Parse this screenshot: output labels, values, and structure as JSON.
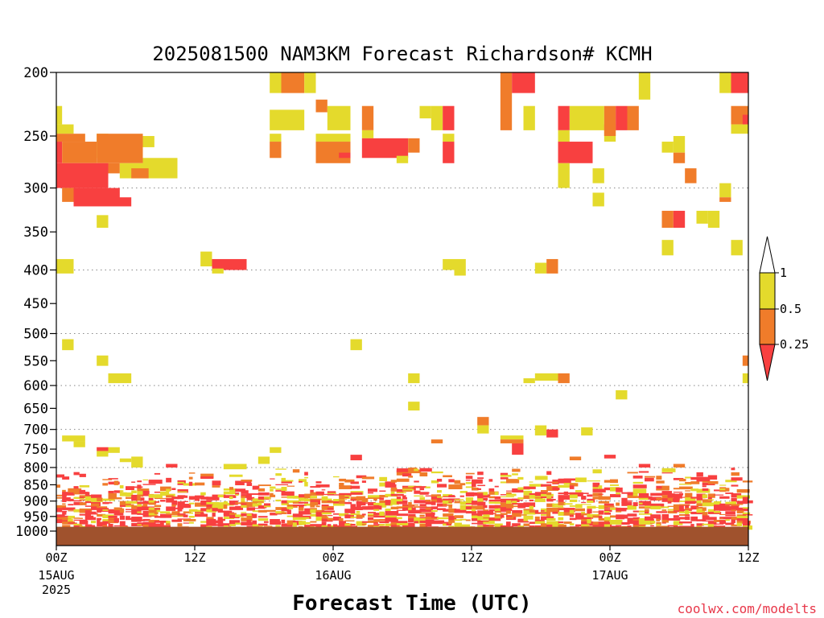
{
  "chart_data": {
    "type": "heatmap",
    "title": "2025081500 NAM3KM Forecast Richardson# KCMH",
    "xlabel": "Forecast Time (UTC)",
    "ylabel": "",
    "credit": "coolwx.com/modelts",
    "x_range_hours": [
      0,
      60
    ],
    "y_axis": {
      "scale": "log-pressure",
      "min": 200,
      "max": 1000,
      "inverted": true
    },
    "y_ticks": [
      200,
      250,
      300,
      350,
      400,
      450,
      500,
      550,
      600,
      650,
      700,
      750,
      800,
      850,
      900,
      950,
      1000
    ],
    "grid_levels": [
      300,
      400,
      500,
      600,
      700,
      800,
      900,
      1000
    ],
    "x_ticks": [
      {
        "hour": 0,
        "label": "00Z",
        "sub1": "15AUG",
        "sub2": "2025"
      },
      {
        "hour": 12,
        "label": "12Z",
        "sub1": "",
        "sub2": ""
      },
      {
        "hour": 24,
        "label": "00Z",
        "sub1": "16AUG",
        "sub2": ""
      },
      {
        "hour": 36,
        "label": "12Z",
        "sub1": "",
        "sub2": ""
      },
      {
        "hour": 48,
        "label": "00Z",
        "sub1": "17AUG",
        "sub2": ""
      },
      {
        "hour": 60,
        "label": "12Z",
        "sub1": "",
        "sub2": ""
      }
    ],
    "categories": [
      {
        "key": "lt025",
        "label": "< 0.25",
        "color": "#f84040"
      },
      {
        "key": "025_05",
        "label": "0.25 - 0.5",
        "color": "#f07c2a"
      },
      {
        "key": "05_1",
        "label": "0.5 - 1",
        "color": "#e4da2c"
      }
    ],
    "legend": {
      "placement": "right",
      "labels": [
        "1",
        "0.5",
        "0.25"
      ]
    },
    "ground_color": "#a0522d",
    "cells": [
      [
        "05_1",
        0.0,
        0.5,
        225,
        240
      ],
      [
        "05_1",
        0.0,
        1.5,
        240,
        248
      ],
      [
        "025_05",
        0.0,
        2.5,
        248,
        255
      ],
      [
        "lt025",
        0.0,
        0.5,
        255,
        275
      ],
      [
        "025_05",
        0.5,
        3.5,
        255,
        275
      ],
      [
        "05_1",
        3.5,
        4.5,
        248,
        270
      ],
      [
        "025_05",
        3.5,
        7.5,
        248,
        275
      ],
      [
        "05_1",
        7.5,
        8.5,
        250,
        260
      ],
      [
        "lt025",
        0.0,
        4.5,
        275,
        300
      ],
      [
        "025_05",
        4.5,
        5.5,
        275,
        285
      ],
      [
        "05_1",
        5.5,
        7.5,
        275,
        290
      ],
      [
        "05_1",
        7.5,
        10.5,
        270,
        290
      ],
      [
        "025_05",
        6.5,
        8.0,
        280,
        290
      ],
      [
        "lt025",
        1.5,
        5.5,
        300,
        315
      ],
      [
        "025_05",
        0.5,
        1.5,
        300,
        315
      ],
      [
        "lt025",
        1.5,
        6.5,
        310,
        320
      ],
      [
        "05_1",
        3.5,
        4.5,
        330,
        345
      ],
      [
        "05_1",
        0.0,
        1.5,
        385,
        405
      ],
      [
        "05_1",
        12.5,
        13.5,
        375,
        395
      ],
      [
        "lt025",
        13.5,
        16.5,
        385,
        400
      ],
      [
        "05_1",
        13.5,
        14.5,
        398,
        405
      ],
      [
        "05_1",
        18.5,
        19.5,
        200,
        215
      ],
      [
        "025_05",
        19.5,
        21.5,
        200,
        215
      ],
      [
        "05_1",
        21.5,
        22.5,
        200,
        215
      ],
      [
        "05_1",
        18.5,
        21.5,
        228,
        245
      ],
      [
        "025_05",
        22.5,
        23.5,
        220,
        230
      ],
      [
        "05_1",
        23.5,
        25.5,
        225,
        245
      ],
      [
        "05_1",
        18.5,
        19.5,
        248,
        255
      ],
      [
        "025_05",
        18.5,
        19.5,
        255,
        270
      ],
      [
        "05_1",
        22.5,
        25.5,
        248,
        255
      ],
      [
        "025_05",
        22.5,
        25.5,
        255,
        275
      ],
      [
        "lt025",
        24.5,
        25.5,
        265,
        270
      ],
      [
        "025_05",
        26.5,
        27.5,
        225,
        245
      ],
      [
        "05_1",
        26.5,
        27.5,
        245,
        252
      ],
      [
        "lt025",
        26.5,
        30.5,
        252,
        270
      ],
      [
        "05_1",
        29.5,
        30.5,
        268,
        275
      ],
      [
        "025_05",
        30.5,
        31.5,
        252,
        265
      ],
      [
        "05_1",
        31.5,
        32.5,
        225,
        235
      ],
      [
        "05_1",
        32.5,
        33.5,
        225,
        245
      ],
      [
        "lt025",
        33.5,
        34.5,
        225,
        245
      ],
      [
        "05_1",
        33.5,
        34.5,
        248,
        255
      ],
      [
        "lt025",
        33.5,
        34.5,
        255,
        275
      ],
      [
        "05_1",
        33.5,
        35.5,
        385,
        400
      ],
      [
        "05_1",
        34.5,
        35.5,
        400,
        408
      ],
      [
        "025_05",
        38.5,
        39.5,
        200,
        230
      ],
      [
        "lt025",
        39.5,
        41.5,
        200,
        215
      ],
      [
        "025_05",
        38.5,
        39.5,
        230,
        245
      ],
      [
        "05_1",
        40.5,
        41.5,
        225,
        245
      ],
      [
        "05_1",
        41.5,
        42.5,
        390,
        405
      ],
      [
        "025_05",
        42.5,
        43.5,
        385,
        405
      ],
      [
        "lt025",
        43.5,
        44.5,
        225,
        245
      ],
      [
        "05_1",
        43.5,
        44.5,
        245,
        255
      ],
      [
        "lt025",
        43.5,
        46.5,
        255,
        275
      ],
      [
        "05_1",
        43.5,
        44.5,
        275,
        300
      ],
      [
        "05_1",
        44.5,
        47.5,
        225,
        245
      ],
      [
        "025_05",
        47.5,
        48.5,
        225,
        245
      ],
      [
        "lt025",
        48.5,
        49.5,
        225,
        245
      ],
      [
        "025_05",
        49.5,
        50.5,
        225,
        245
      ],
      [
        "05_1",
        47.5,
        48.5,
        245,
        255
      ],
      [
        "025_05",
        47.5,
        48.5,
        240,
        250
      ],
      [
        "05_1",
        46.5,
        47.5,
        280,
        295
      ],
      [
        "05_1",
        46.5,
        47.5,
        305,
        320
      ],
      [
        "05_1",
        50.5,
        51.5,
        200,
        220
      ],
      [
        "05_1",
        52.5,
        53.5,
        255,
        265
      ],
      [
        "05_1",
        53.5,
        54.5,
        250,
        265
      ],
      [
        "025_05",
        53.5,
        54.5,
        265,
        275
      ],
      [
        "025_05",
        54.5,
        55.5,
        280,
        295
      ],
      [
        "025_05",
        52.5,
        53.5,
        325,
        345
      ],
      [
        "lt025",
        53.5,
        54.5,
        325,
        345
      ],
      [
        "05_1",
        52.5,
        53.5,
        360,
        380
      ],
      [
        "05_1",
        55.5,
        56.5,
        325,
        340
      ],
      [
        "05_1",
        56.5,
        57.5,
        325,
        345
      ],
      [
        "05_1",
        57.5,
        58.5,
        295,
        310
      ],
      [
        "025_05",
        57.5,
        58.5,
        310,
        315
      ],
      [
        "05_1",
        57.5,
        58.5,
        200,
        215
      ],
      [
        "lt025",
        58.5,
        60.0,
        200,
        215
      ],
      [
        "025_05",
        58.5,
        60.0,
        225,
        240
      ],
      [
        "05_1",
        58.5,
        60.0,
        240,
        248
      ],
      [
        "lt025",
        59.5,
        60.0,
        232,
        240
      ],
      [
        "05_1",
        58.5,
        59.5,
        360,
        380
      ],
      [
        "05_1",
        0.5,
        1.5,
        510,
        530
      ],
      [
        "05_1",
        3.5,
        4.5,
        540,
        560
      ],
      [
        "05_1",
        4.5,
        6.5,
        575,
        595
      ],
      [
        "05_1",
        25.5,
        26.5,
        510,
        530
      ],
      [
        "05_1",
        30.5,
        31.5,
        575,
        595
      ],
      [
        "05_1",
        30.5,
        31.5,
        635,
        655
      ],
      [
        "05_1",
        40.5,
        41.5,
        585,
        595
      ],
      [
        "05_1",
        41.5,
        43.5,
        575,
        590
      ],
      [
        "025_05",
        43.5,
        44.5,
        575,
        595
      ],
      [
        "05_1",
        48.5,
        49.5,
        610,
        630
      ],
      [
        "05_1",
        59.5,
        60.0,
        575,
        595
      ],
      [
        "025_05",
        59.5,
        60.0,
        540,
        560
      ],
      [
        "025_05",
        36.5,
        37.5,
        670,
        690
      ],
      [
        "05_1",
        36.5,
        37.5,
        690,
        710
      ],
      [
        "05_1",
        38.5,
        40.5,
        715,
        725
      ],
      [
        "025_05",
        38.5,
        40.5,
        725,
        735
      ],
      [
        "lt025",
        39.5,
        40.5,
        735,
        765
      ],
      [
        "05_1",
        41.5,
        42.5,
        690,
        715
      ],
      [
        "lt025",
        42.5,
        43.5,
        700,
        720
      ],
      [
        "025_05",
        32.5,
        33.5,
        725,
        735
      ],
      [
        "05_1",
        45.5,
        46.5,
        695,
        715
      ],
      [
        "05_1",
        0.5,
        2.5,
        715,
        730
      ],
      [
        "05_1",
        1.5,
        2.5,
        730,
        745
      ],
      [
        "lt025",
        3.5,
        4.5,
        745,
        755
      ],
      [
        "05_1",
        3.5,
        4.5,
        755,
        770
      ],
      [
        "05_1",
        4.5,
        5.5,
        745,
        760
      ],
      [
        "05_1",
        5.5,
        6.5,
        775,
        785
      ],
      [
        "05_1",
        6.5,
        7.5,
        770,
        800
      ],
      [
        "05_1",
        18.5,
        19.5,
        745,
        760
      ],
      [
        "05_1",
        17.5,
        18.5,
        770,
        790
      ],
      [
        "lt025",
        9.5,
        10.5,
        790,
        800
      ],
      [
        "05_1",
        14.5,
        16.5,
        790,
        805
      ],
      [
        "lt025",
        25.5,
        26.5,
        765,
        780
      ],
      [
        "025_05",
        44.5,
        45.5,
        770,
        780
      ],
      [
        "lt025",
        47.5,
        48.5,
        765,
        775
      ],
      [
        "lt025",
        50.5,
        51.5,
        790,
        800
      ],
      [
        "025_05",
        53.5,
        54.5,
        790,
        800
      ]
    ],
    "low_levels": {
      "p_min": 800,
      "p_max": 985,
      "hours": [
        0,
        60
      ],
      "colors": [
        "#f84040",
        "#f84040",
        "#f84040",
        "#f07c2a",
        "#e4da2c",
        "#f84040",
        "#e4da2c",
        "#f07c2a"
      ]
    }
  }
}
